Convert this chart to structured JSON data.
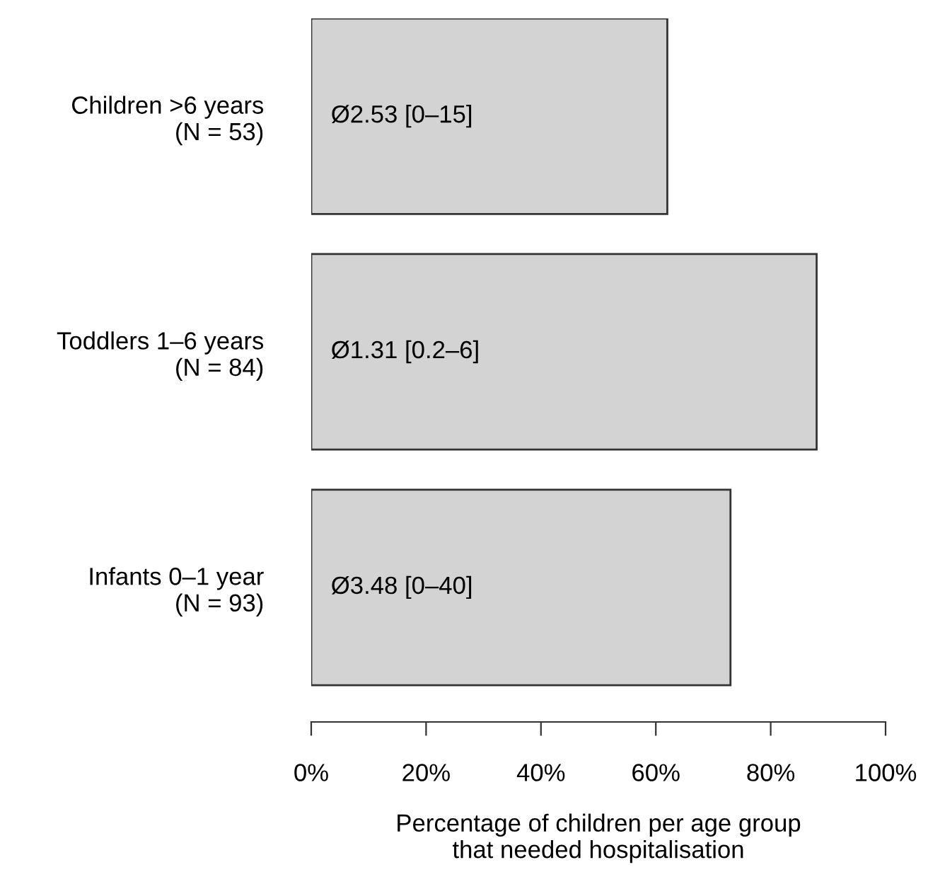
{
  "chart_data": {
    "type": "bar",
    "orientation": "horizontal",
    "categories": [
      "Children >6 years\n(N = 53)",
      "Toddlers 1–6 years\n(N = 84)",
      "Infants 0–1 year\n(N = 93)"
    ],
    "values": [
      62,
      88,
      73
    ],
    "value_labels": [
      "Ø2.53 [0–15]",
      "Ø1.31 [0.2–6]",
      "Ø3.48 [0–40]"
    ],
    "color": "#d3d3d3",
    "xlim": [
      0,
      100
    ],
    "xticks": [
      {
        "value": 0,
        "label": "0%"
      },
      {
        "value": 20,
        "label": "20%"
      },
      {
        "value": 40,
        "label": "40%"
      },
      {
        "value": 60,
        "label": "60%"
      },
      {
        "value": 80,
        "label": "80%"
      },
      {
        "value": 100,
        "label": "100%"
      }
    ],
    "xlabel": "Percentage of children per age group\nthat needed hospitalisation",
    "grid": false
  }
}
